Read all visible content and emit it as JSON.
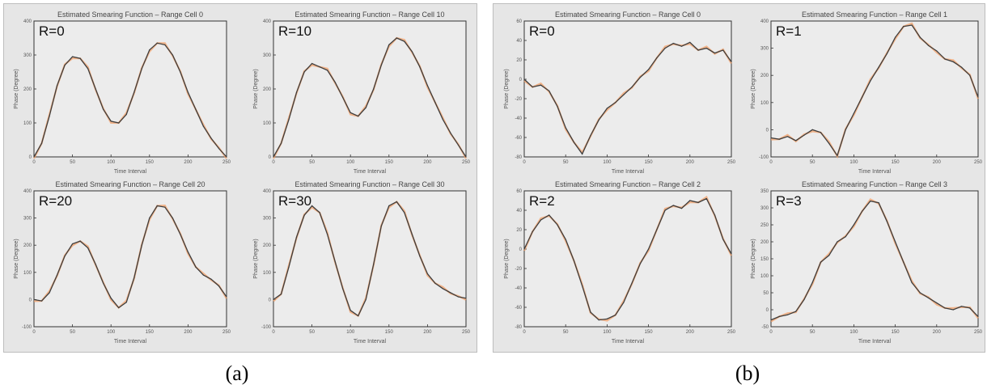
{
  "panel_a": {
    "caption": "(a)",
    "charts": [
      {
        "type": "line",
        "title": "Estimated Smearing Function – Range Cell 0",
        "label": "R=0",
        "xlabel": "Time Interval",
        "ylabel": "Phase (Degree)",
        "xlim": [
          0,
          250
        ],
        "ylim": [
          0,
          400
        ],
        "xticks": [
          0,
          50,
          100,
          150,
          200,
          250
        ],
        "yticks": [
          0,
          100,
          200,
          300,
          400
        ],
        "x": [
          0,
          10,
          20,
          30,
          40,
          50,
          60,
          70,
          80,
          90,
          100,
          110,
          120,
          130,
          140,
          150,
          160,
          170,
          180,
          190,
          200,
          210,
          220,
          230,
          240,
          250
        ],
        "series": [
          {
            "values": [
              0,
              40,
              120,
              210,
              270,
              295,
              290,
              260,
              200,
              140,
              105,
              100,
              125,
              190,
              260,
              315,
              335,
              330,
              300,
              250,
              190,
              140,
              90,
              55,
              25,
              0
            ]
          }
        ]
      },
      {
        "type": "line",
        "title": "Estimated Smearing Function – Range Cell 10",
        "label": "R=10",
        "xlabel": "Time Interval",
        "ylabel": "Phase (Degree)",
        "xlim": [
          0,
          250
        ],
        "ylim": [
          0,
          400
        ],
        "xticks": [
          0,
          50,
          100,
          150,
          200,
          250
        ],
        "yticks": [
          0,
          100,
          200,
          300,
          400
        ],
        "x": [
          0,
          10,
          20,
          30,
          40,
          50,
          60,
          70,
          80,
          90,
          100,
          110,
          120,
          130,
          140,
          150,
          160,
          170,
          180,
          190,
          200,
          210,
          220,
          230,
          240,
          250
        ],
        "series": [
          {
            "values": [
              0,
              40,
              110,
              190,
              250,
              275,
              265,
              255,
              220,
              175,
              130,
              120,
              145,
              200,
              270,
              330,
              350,
              340,
              310,
              265,
              210,
              160,
              110,
              70,
              35,
              0
            ]
          }
        ]
      },
      {
        "type": "line",
        "title": "Estimated Smearing Function – Range Cell 20",
        "label": "R=20",
        "xlabel": "Time Interval",
        "ylabel": "Phase (Degree)",
        "xlim": [
          0,
          250
        ],
        "ylim": [
          -100,
          400
        ],
        "xticks": [
          0,
          50,
          100,
          150,
          200,
          250
        ],
        "yticks": [
          -100,
          0,
          100,
          200,
          300,
          400
        ],
        "x": [
          0,
          10,
          20,
          30,
          40,
          50,
          60,
          70,
          80,
          90,
          100,
          110,
          120,
          130,
          140,
          150,
          160,
          170,
          180,
          190,
          200,
          210,
          220,
          230,
          240,
          250
        ],
        "series": [
          {
            "values": [
              0,
              -5,
              25,
              90,
              160,
              205,
              215,
              190,
              130,
              60,
              5,
              -30,
              -10,
              80,
              200,
              300,
              345,
              340,
              300,
              240,
              175,
              120,
              90,
              75,
              50,
              10
            ]
          }
        ]
      },
      {
        "type": "line",
        "title": "Estimated Smearing Function – Range Cell 30",
        "label": "R=30",
        "xlabel": "Time Interval",
        "ylabel": "Phase (Degree)",
        "xlim": [
          0,
          250
        ],
        "ylim": [
          -100,
          400
        ],
        "xticks": [
          0,
          50,
          100,
          150,
          200,
          250
        ],
        "yticks": [
          -100,
          0,
          100,
          200,
          300,
          400
        ],
        "x": [
          0,
          10,
          20,
          30,
          40,
          50,
          60,
          70,
          80,
          90,
          100,
          110,
          120,
          130,
          140,
          150,
          160,
          170,
          180,
          190,
          200,
          210,
          220,
          230,
          240,
          250
        ],
        "series": [
          {
            "values": [
              0,
              20,
              120,
              230,
              310,
              345,
              320,
              240,
              140,
              40,
              -40,
              -60,
              0,
              130,
              270,
              345,
              360,
              320,
              240,
              160,
              95,
              60,
              40,
              25,
              10,
              5
            ]
          }
        ]
      }
    ]
  },
  "panel_b": {
    "caption": "(b)",
    "charts": [
      {
        "type": "line",
        "title": "Estimated Smearing Function – Range Cell 0",
        "label": "R=0",
        "xlabel": "Time Interval",
        "ylabel": "Phase (Degree)",
        "xlim": [
          0,
          250
        ],
        "ylim": [
          -80,
          60
        ],
        "xticks": [
          0,
          50,
          100,
          150,
          200,
          250
        ],
        "yticks": [
          -80,
          -60,
          -40,
          -20,
          0,
          20,
          40,
          60
        ],
        "x": [
          0,
          10,
          20,
          30,
          40,
          50,
          60,
          70,
          80,
          90,
          100,
          110,
          120,
          130,
          140,
          150,
          160,
          170,
          180,
          190,
          200,
          210,
          220,
          230,
          240,
          250
        ],
        "series": [
          {
            "values": [
              0,
              -8,
              -6,
              -12,
              -28,
              -50,
              -65,
              -77,
              -58,
              -42,
              -30,
              -24,
              -16,
              -8,
              2,
              10,
              22,
              32,
              37,
              34,
              38,
              30,
              32,
              27,
              30,
              18
            ]
          }
        ]
      },
      {
        "type": "line",
        "title": "Estimated Smearing Function – Range Cell 1",
        "label": "R=1",
        "xlabel": "Time Interval",
        "ylabel": "Phase (Degree)",
        "xlim": [
          0,
          250
        ],
        "ylim": [
          -100,
          400
        ],
        "xticks": [
          0,
          50,
          100,
          150,
          200,
          250
        ],
        "yticks": [
          -100,
          0,
          100,
          200,
          300,
          400
        ],
        "x": [
          0,
          10,
          20,
          30,
          40,
          50,
          60,
          70,
          80,
          90,
          100,
          110,
          120,
          130,
          140,
          150,
          160,
          170,
          180,
          190,
          200,
          210,
          220,
          230,
          240,
          250
        ],
        "series": [
          {
            "values": [
              -30,
              -35,
              -25,
              -40,
              -20,
              0,
              -10,
              -50,
              -95,
              0,
              60,
              120,
              180,
              230,
              280,
              340,
              380,
              385,
              340,
              310,
              290,
              260,
              250,
              230,
              200,
              120
            ]
          }
        ]
      },
      {
        "type": "line",
        "title": "Estimated Smearing Function – Range Cell 2",
        "label": "R=2",
        "xlabel": "Time Interval",
        "ylabel": "Phase (Degree)",
        "xlim": [
          0,
          250
        ],
        "ylim": [
          -80,
          60
        ],
        "xticks": [
          0,
          50,
          100,
          150,
          200,
          250
        ],
        "yticks": [
          -80,
          -60,
          -40,
          -20,
          0,
          20,
          40,
          60
        ],
        "x": [
          0,
          10,
          20,
          30,
          40,
          50,
          60,
          70,
          80,
          90,
          100,
          110,
          120,
          130,
          140,
          150,
          160,
          170,
          180,
          190,
          200,
          210,
          220,
          230,
          240,
          250
        ],
        "series": [
          {
            "values": [
              0,
              18,
              30,
              35,
              25,
              10,
              -12,
              -38,
              -65,
              -73,
              -72,
              -68,
              -55,
              -35,
              -15,
              0,
              20,
              40,
              45,
              42,
              50,
              48,
              52,
              35,
              10,
              -5
            ]
          }
        ]
      },
      {
        "type": "line",
        "title": "Estimated Smearing Function – Range Cell 3",
        "label": "R=3",
        "xlabel": "Time Interval",
        "ylabel": "Phase (Degree)",
        "xlim": [
          0,
          250
        ],
        "ylim": [
          -50,
          350
        ],
        "xticks": [
          0,
          50,
          100,
          150,
          200,
          250
        ],
        "yticks": [
          -50,
          0,
          50,
          100,
          150,
          200,
          250,
          300,
          350
        ],
        "x": [
          0,
          10,
          20,
          30,
          40,
          50,
          60,
          70,
          80,
          90,
          100,
          110,
          120,
          130,
          140,
          150,
          160,
          170,
          180,
          190,
          200,
          210,
          220,
          230,
          240,
          250
        ],
        "series": [
          {
            "values": [
              -30,
              -20,
              -15,
              -5,
              30,
              80,
              140,
              160,
              200,
              215,
              250,
              290,
              320,
              315,
              260,
              200,
              140,
              80,
              50,
              35,
              20,
              5,
              0,
              10,
              5,
              -20
            ]
          }
        ]
      }
    ]
  },
  "colors": {
    "frame_bg": "#e6e6e6",
    "plot_bg": "#ececec",
    "axis": "#333333",
    "line_dark": "#3d3d3d",
    "line_orange": "#f2a06a"
  }
}
